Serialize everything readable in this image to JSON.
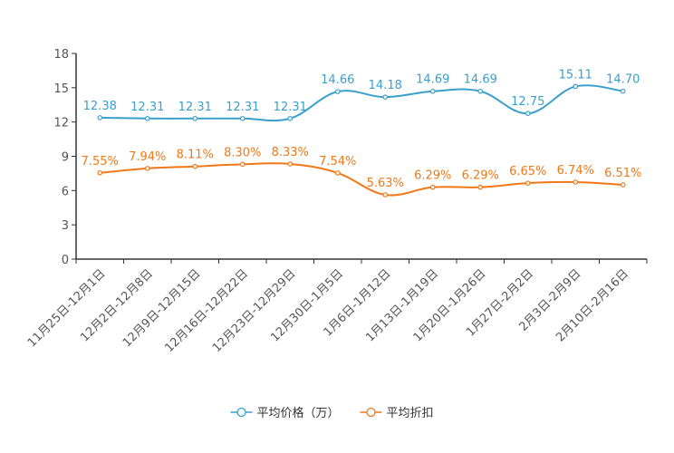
{
  "chart_data": {
    "type": "line",
    "title": "",
    "xlabel": "",
    "ylabel": "",
    "ylim": [
      0,
      18
    ],
    "yticks": [
      0,
      3,
      6,
      9,
      12,
      15,
      18
    ],
    "grid": false,
    "legend_position": "bottom-center",
    "categories": [
      "11月25日-12月1日",
      "12月2日-12月8日",
      "12月9日-12月15日",
      "12月16日-12月22日",
      "12月23日-12月29日",
      "12月30日-1月5日",
      "1月6日-1月12日",
      "1月13日-1月19日",
      "1月20日-1月26日",
      "1月27日-2月2日",
      "2月3日-2月9日",
      "2月10日-2月16日"
    ],
    "series": [
      {
        "name": "平均价格（万）",
        "color": "#3a9fcb",
        "values": [
          12.38,
          12.31,
          12.31,
          12.31,
          12.31,
          14.66,
          14.18,
          14.69,
          14.69,
          12.75,
          15.11,
          14.7
        ],
        "labels": [
          "12.38",
          "12.31",
          "12.31",
          "12.31",
          "12.31",
          "14.66",
          "14.18",
          "14.69",
          "14.69",
          "12.75",
          "15.11",
          "14.70"
        ]
      },
      {
        "name": "平均折扣",
        "color": "#f07818",
        "values": [
          7.55,
          7.94,
          8.11,
          8.3,
          8.33,
          7.54,
          5.63,
          6.29,
          6.29,
          6.65,
          6.74,
          6.51
        ],
        "labels": [
          "7.55%",
          "7.94%",
          "8.11%",
          "8.30%",
          "8.33%",
          "7.54%",
          "5.63%",
          "6.29%",
          "6.29%",
          "6.65%",
          "6.74%",
          "6.51%"
        ]
      }
    ]
  }
}
